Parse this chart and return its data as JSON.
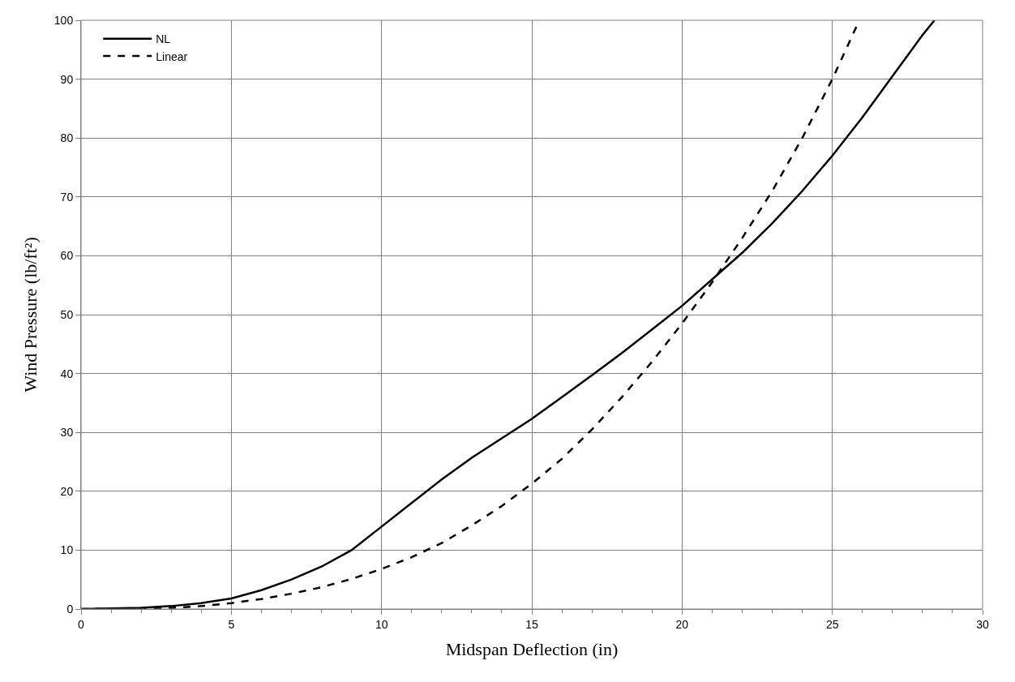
{
  "chart_data": {
    "type": "line",
    "xlabel": "Midspan Deflection (in)",
    "ylabel": "Wind Pressure (lb/ft²)",
    "xlim": [
      0,
      30
    ],
    "ylim": [
      0,
      100
    ],
    "xticks": [
      0,
      {
        "value": 1,
        "label": null
      },
      {
        "value": 2,
        "label": null
      },
      {
        "value": 3,
        "label": null
      },
      {
        "value": 4,
        "label": null
      },
      5,
      {
        "value": 6,
        "label": null
      },
      {
        "value": 7,
        "label": null
      },
      {
        "value": 8,
        "label": null
      },
      {
        "value": 9,
        "label": null
      },
      10,
      {
        "value": 11,
        "label": null
      },
      {
        "value": 12,
        "label": null
      },
      {
        "value": 13,
        "label": null
      },
      {
        "value": 14,
        "label": null
      },
      15,
      {
        "value": 16,
        "label": null
      },
      {
        "value": 17,
        "label": null
      },
      {
        "value": 18,
        "label": null
      },
      {
        "value": 19,
        "label": null
      },
      20,
      {
        "value": 21,
        "label": null
      },
      {
        "value": 22,
        "label": null
      },
      {
        "value": 23,
        "label": null
      },
      {
        "value": 24,
        "label": null
      },
      25,
      {
        "value": 26,
        "label": null
      },
      {
        "value": 27,
        "label": null
      },
      {
        "value": 28,
        "label": null
      },
      {
        "value": 29,
        "label": null
      },
      30
    ],
    "yticks": [
      0,
      10,
      20,
      30,
      40,
      50,
      60,
      70,
      80,
      90,
      100
    ],
    "grid": true,
    "legend": "top left",
    "series": [
      {
        "name": "NL",
        "color": "#000000",
        "line_style": "solid",
        "x": [
          0,
          2,
          3,
          4,
          5,
          6,
          7,
          8,
          9,
          10,
          11,
          12,
          13,
          14,
          15,
          16,
          17,
          18,
          19,
          20,
          21,
          22,
          23,
          24,
          25,
          26,
          27,
          28,
          28.4
        ],
        "values": [
          0,
          0.2,
          0.5,
          1.0,
          1.8,
          3.2,
          5.0,
          7.2,
          10,
          14,
          18,
          22,
          25.7,
          29,
          32.3,
          36,
          39.7,
          43.5,
          47.5,
          51.5,
          56,
          60.5,
          65.5,
          71,
          77,
          83.5,
          90.5,
          97.5,
          100
        ]
      },
      {
        "name": "Linear",
        "color": "#000000",
        "line_style": "dashed",
        "x": [
          0,
          3,
          4,
          5,
          6,
          7,
          8,
          9,
          10,
          11,
          12,
          13,
          14,
          15,
          16,
          17,
          18,
          19,
          20,
          21,
          22,
          23,
          24,
          25,
          25.9
        ],
        "values": [
          0,
          0.2,
          0.5,
          1.0,
          1.7,
          2.6,
          3.7,
          5.1,
          6.8,
          8.8,
          11.2,
          14.2,
          17.5,
          21.3,
          25.5,
          30.5,
          36,
          42,
          48.5,
          55.5,
          63,
          71,
          80,
          90,
          100
        ]
      }
    ]
  }
}
